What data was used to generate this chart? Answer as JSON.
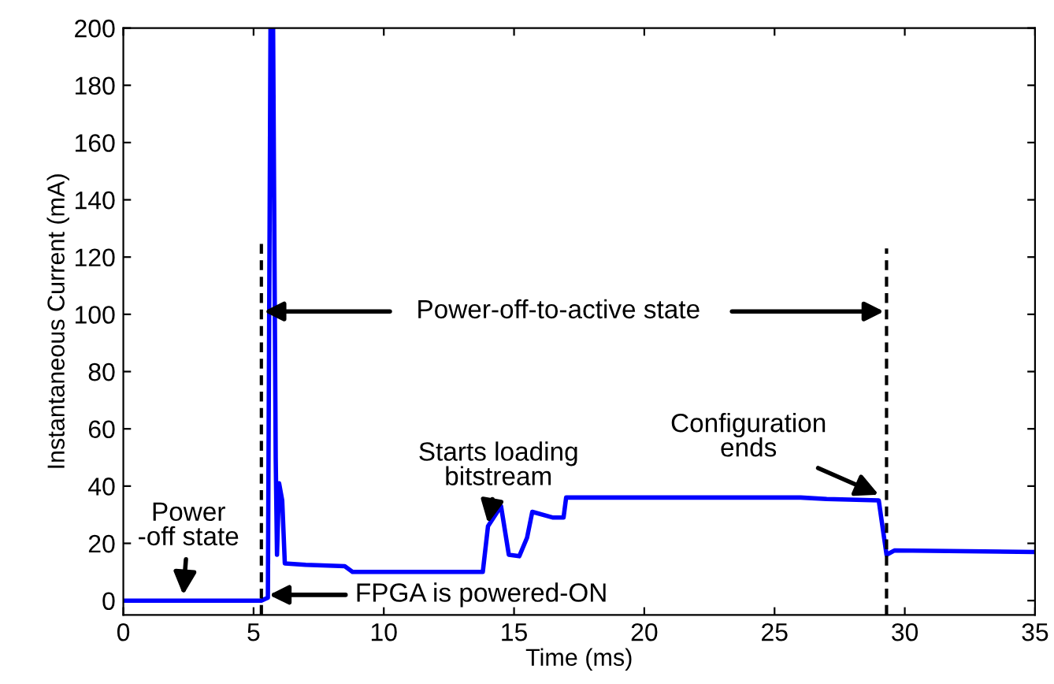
{
  "chart_data": {
    "type": "line",
    "xlabel": "Time (ms)",
    "ylabel": "Instantaneous Current (mA)",
    "xlim": [
      0,
      35
    ],
    "ylim": [
      -5,
      200
    ],
    "xticks": [
      0,
      5,
      10,
      15,
      20,
      25,
      30,
      35
    ],
    "yticks": [
      0,
      20,
      40,
      60,
      80,
      100,
      120,
      140,
      160,
      180,
      200
    ],
    "grid": false,
    "legend": false,
    "marker": "none",
    "series": [
      {
        "color": "#0000ff",
        "line_style": "solid",
        "x": [
          0,
          5.3,
          5.55,
          5.65,
          5.75,
          5.85,
          5.9,
          5.98,
          6.1,
          6.2,
          7,
          8.5,
          8.8,
          13.8,
          14.0,
          14.5,
          14.8,
          15.2,
          15.5,
          15.7,
          16.5,
          16.9,
          17.0,
          26,
          27,
          29,
          29.3,
          29.6,
          35
        ],
        "values": [
          0,
          0,
          1,
          200,
          200,
          50,
          16,
          41,
          35,
          13,
          12.5,
          12,
          10,
          10,
          26,
          33,
          16,
          15.5,
          22,
          31,
          29,
          29,
          36,
          36,
          35.5,
          35,
          16,
          17.5,
          17
        ]
      },
      {
        "color": "#000000",
        "line_style": "dashed",
        "x": [
          5.3,
          5.3
        ],
        "values": [
          -5,
          125
        ]
      },
      {
        "color": "#000000",
        "line_style": "dashed",
        "x": [
          29.3,
          29.3
        ],
        "values": [
          -5,
          123
        ]
      }
    ],
    "annotations": [
      {
        "text": "Power\n-off state",
        "x": 2.3,
        "y": 2
      },
      "FPGA is powered-ON",
      "Power-off-to-active state",
      {
        "text": "Starts loading\nbitstream",
        "x": 14.0,
        "y": 27
      },
      {
        "text": "Configuration\nends",
        "x": 29.0,
        "y": 37
      }
    ]
  }
}
